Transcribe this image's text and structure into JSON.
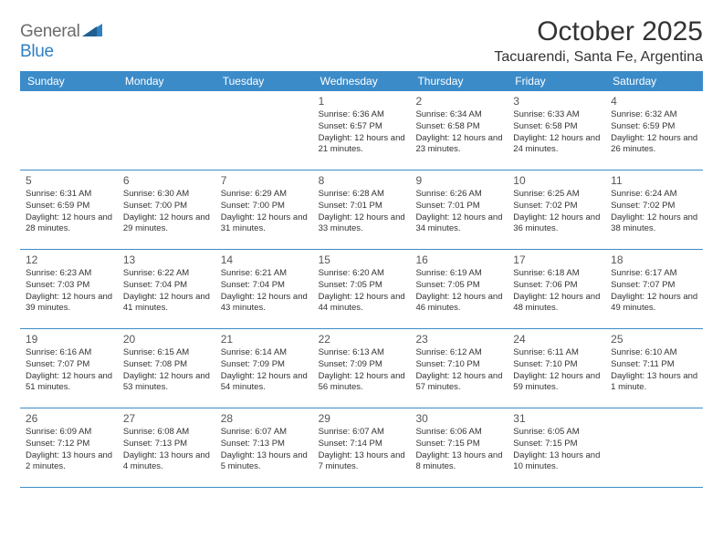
{
  "logo": {
    "general": "General",
    "blue": "Blue"
  },
  "title": "October 2025",
  "location": "Tacuarendi, Santa Fe, Argentina",
  "colors": {
    "header_bg": "#3b8bc9",
    "header_text": "#ffffff",
    "row_border": "#3b8bc9",
    "text": "#333333",
    "logo_gray": "#6b6b6b",
    "logo_blue": "#2f7fc1"
  },
  "day_names": [
    "Sunday",
    "Monday",
    "Tuesday",
    "Wednesday",
    "Thursday",
    "Friday",
    "Saturday"
  ],
  "weeks": [
    [
      null,
      null,
      null,
      {
        "n": "1",
        "sr": "6:36 AM",
        "ss": "6:57 PM",
        "dl": "12 hours and 21 minutes."
      },
      {
        "n": "2",
        "sr": "6:34 AM",
        "ss": "6:58 PM",
        "dl": "12 hours and 23 minutes."
      },
      {
        "n": "3",
        "sr": "6:33 AM",
        "ss": "6:58 PM",
        "dl": "12 hours and 24 minutes."
      },
      {
        "n": "4",
        "sr": "6:32 AM",
        "ss": "6:59 PM",
        "dl": "12 hours and 26 minutes."
      }
    ],
    [
      {
        "n": "5",
        "sr": "6:31 AM",
        "ss": "6:59 PM",
        "dl": "12 hours and 28 minutes."
      },
      {
        "n": "6",
        "sr": "6:30 AM",
        "ss": "7:00 PM",
        "dl": "12 hours and 29 minutes."
      },
      {
        "n": "7",
        "sr": "6:29 AM",
        "ss": "7:00 PM",
        "dl": "12 hours and 31 minutes."
      },
      {
        "n": "8",
        "sr": "6:28 AM",
        "ss": "7:01 PM",
        "dl": "12 hours and 33 minutes."
      },
      {
        "n": "9",
        "sr": "6:26 AM",
        "ss": "7:01 PM",
        "dl": "12 hours and 34 minutes."
      },
      {
        "n": "10",
        "sr": "6:25 AM",
        "ss": "7:02 PM",
        "dl": "12 hours and 36 minutes."
      },
      {
        "n": "11",
        "sr": "6:24 AM",
        "ss": "7:02 PM",
        "dl": "12 hours and 38 minutes."
      }
    ],
    [
      {
        "n": "12",
        "sr": "6:23 AM",
        "ss": "7:03 PM",
        "dl": "12 hours and 39 minutes."
      },
      {
        "n": "13",
        "sr": "6:22 AM",
        "ss": "7:04 PM",
        "dl": "12 hours and 41 minutes."
      },
      {
        "n": "14",
        "sr": "6:21 AM",
        "ss": "7:04 PM",
        "dl": "12 hours and 43 minutes."
      },
      {
        "n": "15",
        "sr": "6:20 AM",
        "ss": "7:05 PM",
        "dl": "12 hours and 44 minutes."
      },
      {
        "n": "16",
        "sr": "6:19 AM",
        "ss": "7:05 PM",
        "dl": "12 hours and 46 minutes."
      },
      {
        "n": "17",
        "sr": "6:18 AM",
        "ss": "7:06 PM",
        "dl": "12 hours and 48 minutes."
      },
      {
        "n": "18",
        "sr": "6:17 AM",
        "ss": "7:07 PM",
        "dl": "12 hours and 49 minutes."
      }
    ],
    [
      {
        "n": "19",
        "sr": "6:16 AM",
        "ss": "7:07 PM",
        "dl": "12 hours and 51 minutes."
      },
      {
        "n": "20",
        "sr": "6:15 AM",
        "ss": "7:08 PM",
        "dl": "12 hours and 53 minutes."
      },
      {
        "n": "21",
        "sr": "6:14 AM",
        "ss": "7:09 PM",
        "dl": "12 hours and 54 minutes."
      },
      {
        "n": "22",
        "sr": "6:13 AM",
        "ss": "7:09 PM",
        "dl": "12 hours and 56 minutes."
      },
      {
        "n": "23",
        "sr": "6:12 AM",
        "ss": "7:10 PM",
        "dl": "12 hours and 57 minutes."
      },
      {
        "n": "24",
        "sr": "6:11 AM",
        "ss": "7:10 PM",
        "dl": "12 hours and 59 minutes."
      },
      {
        "n": "25",
        "sr": "6:10 AM",
        "ss": "7:11 PM",
        "dl": "13 hours and 1 minute."
      }
    ],
    [
      {
        "n": "26",
        "sr": "6:09 AM",
        "ss": "7:12 PM",
        "dl": "13 hours and 2 minutes."
      },
      {
        "n": "27",
        "sr": "6:08 AM",
        "ss": "7:13 PM",
        "dl": "13 hours and 4 minutes."
      },
      {
        "n": "28",
        "sr": "6:07 AM",
        "ss": "7:13 PM",
        "dl": "13 hours and 5 minutes."
      },
      {
        "n": "29",
        "sr": "6:07 AM",
        "ss": "7:14 PM",
        "dl": "13 hours and 7 minutes."
      },
      {
        "n": "30",
        "sr": "6:06 AM",
        "ss": "7:15 PM",
        "dl": "13 hours and 8 minutes."
      },
      {
        "n": "31",
        "sr": "6:05 AM",
        "ss": "7:15 PM",
        "dl": "13 hours and 10 minutes."
      },
      null
    ]
  ],
  "labels": {
    "sunrise": "Sunrise:",
    "sunset": "Sunset:",
    "daylight": "Daylight:"
  }
}
